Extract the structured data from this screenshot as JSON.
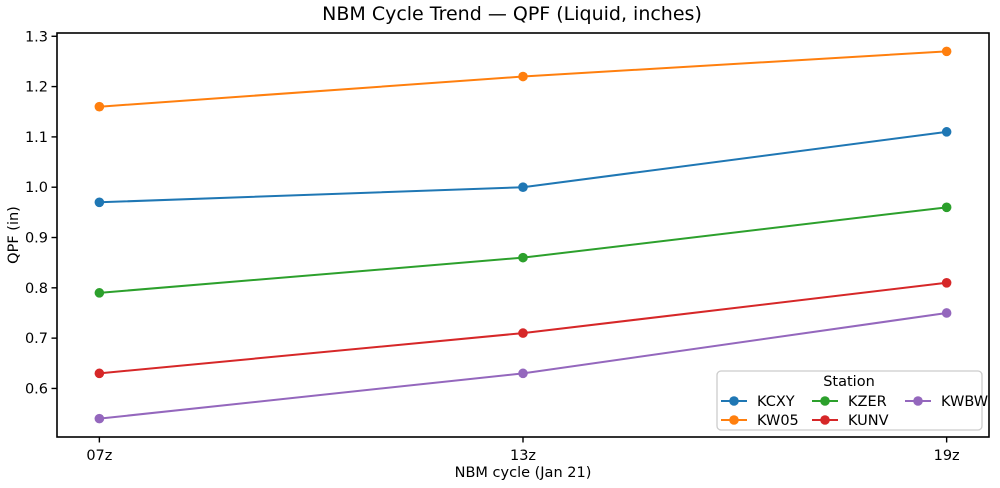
{
  "chart_data": {
    "type": "line",
    "title": "NBM Cycle Trend — QPF (Liquid, inches)",
    "xlabel": "NBM cycle (Jan 21)",
    "ylabel": "QPF (in)",
    "categories": [
      "07z",
      "13z",
      "19z"
    ],
    "series": [
      {
        "name": "KCXY",
        "color": "#1f77b4",
        "values": [
          0.97,
          1.0,
          1.11
        ]
      },
      {
        "name": "KW05",
        "color": "#ff7f0e",
        "values": [
          1.16,
          1.22,
          1.27
        ]
      },
      {
        "name": "KZER",
        "color": "#2ca02c",
        "values": [
          0.79,
          0.86,
          0.96
        ]
      },
      {
        "name": "KUNV",
        "color": "#d62728",
        "values": [
          0.63,
          0.71,
          0.81
        ]
      },
      {
        "name": "KWBW",
        "color": "#9467bd",
        "values": [
          0.54,
          0.63,
          0.75
        ]
      }
    ],
    "y_ticks": [
      0.6,
      0.7,
      0.8,
      0.9,
      1.0,
      1.1,
      1.2,
      1.3
    ],
    "ylim": [
      0.5035,
      1.3065
    ],
    "x_margin": 0.1,
    "grid": false,
    "marker": "o",
    "legend": {
      "title": "Station",
      "position": "lower right",
      "ncol": 3,
      "order": [
        "KCXY",
        "KW05",
        "KZER",
        "KUNV",
        "KWBW"
      ]
    },
    "style": {
      "spine_color": "#000000",
      "background": "#ffffff",
      "legend_border": "#cccccc"
    }
  }
}
